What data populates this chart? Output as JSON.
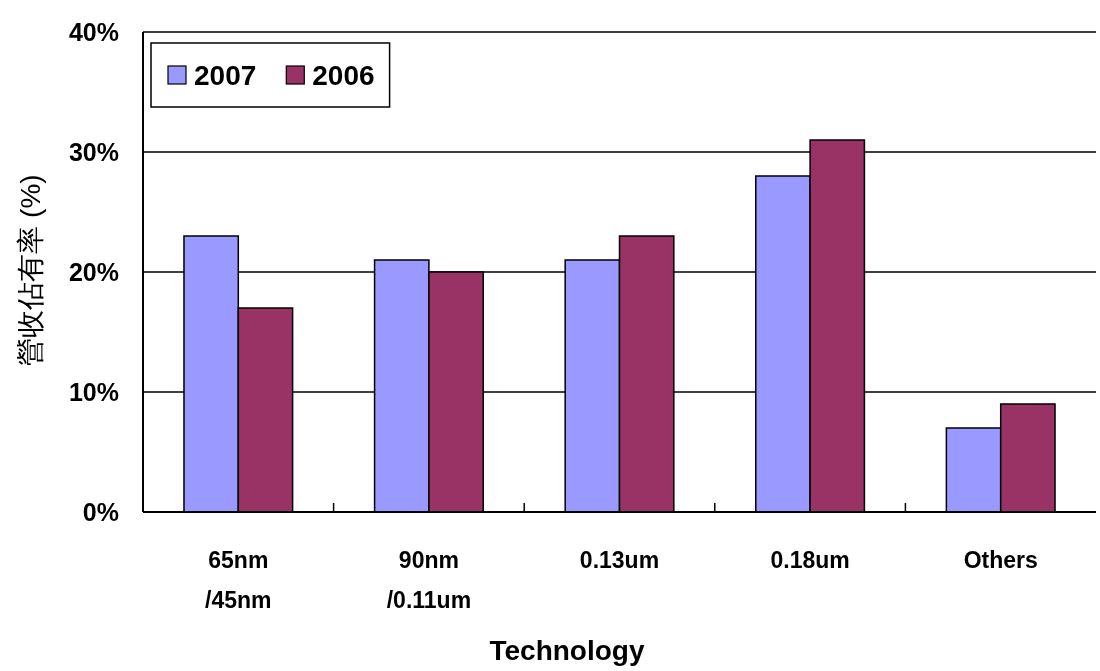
{
  "chart_data": {
    "type": "bar",
    "xlabel": "Technology",
    "ylabel": "營收佔有率 (%)",
    "categories": [
      "65nm\n/45nm",
      "90nm\n/0.11um",
      "0.13um",
      "0.18um",
      "Others"
    ],
    "series": [
      {
        "name": "2007",
        "color": "#9999ff",
        "values": [
          23,
          21,
          21,
          28,
          7
        ]
      },
      {
        "name": "2006",
        "color": "#993366",
        "values": [
          17,
          20,
          23,
          31,
          9
        ]
      }
    ],
    "ylim": [
      0,
      40
    ],
    "yticks": [
      {
        "value": 0,
        "label": "0%"
      },
      {
        "value": 10,
        "label": "10%"
      },
      {
        "value": 20,
        "label": "20%"
      },
      {
        "value": 30,
        "label": "30%"
      },
      {
        "value": 40,
        "label": "40%"
      }
    ],
    "grid": "y",
    "legend": "top left"
  }
}
